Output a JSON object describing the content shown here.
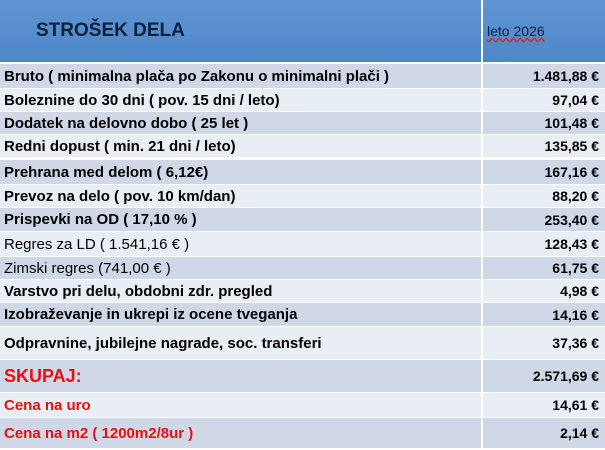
{
  "header": {
    "title": "STROŠEK DELA",
    "column": "leto 2026"
  },
  "table": {
    "rows": [
      [
        "Bruto ( minimalna plača po Zakonu o minimalni plači )",
        "1.481,88 €"
      ],
      [
        "Boleznine do 30 dni ( pov. 15 dni / leto)",
        "97,04 €"
      ],
      [
        "Dodatek na delovno dobo ( 25 let )",
        "101,48 €"
      ],
      [
        "Redni dopust ( min. 21 dni / leto)",
        "135,85 €"
      ],
      [
        "Prehrana med delom ( 6,12€)",
        "167,16 €"
      ],
      [
        "Prevoz na delo ( pov. 10 km/dan)",
        "88,20 €"
      ],
      [
        "Prispevki na OD ( 17,10 % )",
        "253,40 €"
      ],
      [
        "Regres za LD ( 1.541,16 € )",
        "128,43 €"
      ],
      [
        "Zimski regres (741,00 € )",
        "61,75 €"
      ],
      [
        "Varstvo pri delu, obdobni zdr. pregled",
        "4,98 €"
      ],
      [
        "Izobraževanje in ukrepi iz ocene tveganja",
        "14,16 €"
      ],
      [
        "Odpravnine, jubilejne nagrade, soc. transferi",
        "37,36 €"
      ],
      [
        "SKUPAJ:",
        "2.571,69 €"
      ],
      [
        "Cena na uro",
        "14,61 €"
      ],
      [
        "Cena na m2 ( 1200m2/8ur )",
        "2,14 €"
      ]
    ]
  }
}
